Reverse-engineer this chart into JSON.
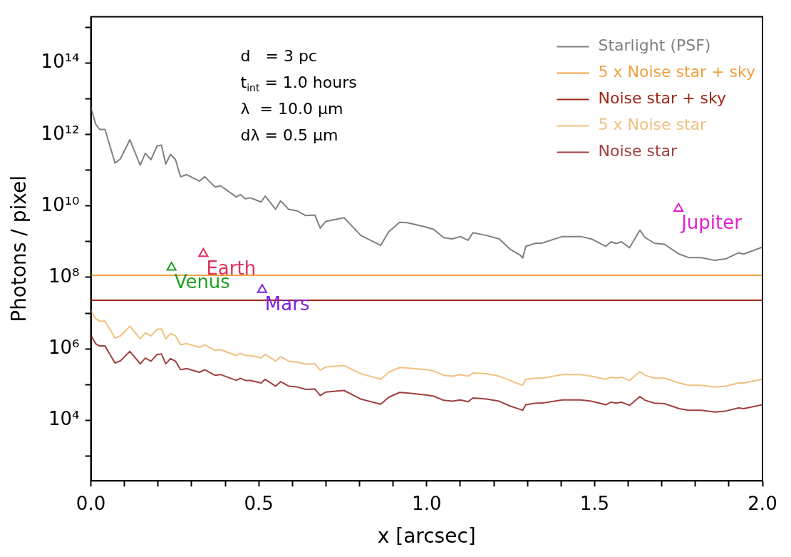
{
  "chart_data": {
    "type": "line",
    "xlabel": "x [arcsec]",
    "ylabel": "Photons / pixel",
    "log": "y",
    "grid": false,
    "legend": "top right",
    "line_style": "solid",
    "xlim": [
      0,
      2
    ],
    "xticks": [
      {
        "value": 0,
        "label": "0.0"
      },
      {
        "value": 0.1,
        "label": null
      },
      {
        "value": 0.2,
        "label": null
      },
      {
        "value": 0.3,
        "label": null
      },
      {
        "value": 0.4,
        "label": null
      },
      {
        "value": 0.5,
        "label": "0.5"
      },
      {
        "value": 0.6,
        "label": null
      },
      {
        "value": 0.7,
        "label": null
      },
      {
        "value": 0.8,
        "label": null
      },
      {
        "value": 0.9,
        "label": null
      },
      {
        "value": 1,
        "label": "1.0"
      },
      {
        "value": 1.1,
        "label": null
      },
      {
        "value": 1.2,
        "label": null
      },
      {
        "value": 1.3,
        "label": null
      },
      {
        "value": 1.4,
        "label": null
      },
      {
        "value": 1.5,
        "label": "1.5"
      },
      {
        "value": 1.6,
        "label": null
      },
      {
        "value": 1.7,
        "label": null
      },
      {
        "value": 1.8,
        "label": null
      },
      {
        "value": 1.9,
        "label": null
      },
      {
        "value": 2,
        "label": "2.0"
      }
    ],
    "ylim": [
      200,
      2000000000000000.0
    ],
    "yticks": [
      {
        "value": 1000,
        "label": null
      },
      {
        "value": 10000,
        "label": "10⁴"
      },
      {
        "value": 100000,
        "label": null
      },
      {
        "value": 1000000,
        "label": "10⁶"
      },
      {
        "value": 10000000,
        "label": null
      },
      {
        "value": 100000000,
        "label": "10⁸"
      },
      {
        "value": 1000000000,
        "label": null
      },
      {
        "value": 10000000000,
        "label": "10¹⁰"
      },
      {
        "value": 100000000000,
        "label": null
      },
      {
        "value": 1000000000000,
        "label": "10¹²"
      },
      {
        "value": 10000000000000,
        "label": null
      },
      {
        "value": 100000000000000,
        "label": "10¹⁴"
      },
      {
        "value": 1000000000000000,
        "label": null
      }
    ],
    "annotations": [
      "d   = 3 pc",
      "t$_{int}$ = 1.0 hours",
      "λ  = 10.0 μm",
      "dλ = 0.5 μm"
    ],
    "x": [
      0,
      0.014,
      0.026,
      0.042,
      0.072,
      0.088,
      0.116,
      0.147,
      0.162,
      0.179,
      0.197,
      0.21,
      0.223,
      0.237,
      0.252,
      0.267,
      0.285,
      0.323,
      0.339,
      0.37,
      0.386,
      0.433,
      0.445,
      0.46,
      0.475,
      0.507,
      0.519,
      0.55,
      0.565,
      0.589,
      0.613,
      0.64,
      0.667,
      0.683,
      0.699,
      0.754,
      0.804,
      0.863,
      0.887,
      0.919,
      0.942,
      0.997,
      1.021,
      1.051,
      1.076,
      1.1,
      1.123,
      1.138,
      1.178,
      1.216,
      1.248,
      1.279,
      1.286,
      1.295,
      1.325,
      1.342,
      1.404,
      1.459,
      1.49,
      1.533,
      1.549,
      1.564,
      1.58,
      1.604,
      1.635,
      1.651,
      1.678,
      1.708,
      1.752,
      1.78,
      1.818,
      1.858,
      1.89,
      1.929,
      1.944,
      2
    ],
    "series": [
      {
        "name": "Starlight (PSF)",
        "color": "#808080",
        "values": [
          5800000000000.0,
          2000000000000.0,
          1400000000000.0,
          1400000000000.0,
          160000000000.0,
          210000000000.0,
          720000000000.0,
          140000000000.0,
          300000000000.0,
          200000000000.0,
          480000000000.0,
          510000000000.0,
          150000000000.0,
          280000000000.0,
          200000000000.0,
          66000000000.0,
          76000000000.0,
          50000000000.0,
          66000000000.0,
          34000000000.0,
          37000000000.0,
          18000000000.0,
          21000000000.0,
          16000000000.0,
          17000000000.0,
          13000000000.0,
          19000000000.0,
          8100000000.0,
          14000000000.0,
          8100000000.0,
          7400000000.0,
          5400000000.0,
          5600000000.0,
          2400000000.0,
          3700000000.0,
          4700000000.0,
          1500000000.0,
          790000000.0,
          1900000000.0,
          3500000000.0,
          3400000000.0,
          2600000000.0,
          2200000000.0,
          1300000000.0,
          1200000000.0,
          1400000000.0,
          1100000000.0,
          1800000000.0,
          1500000000.0,
          1200000000.0,
          620000000.0,
          420000000.0,
          350000000.0,
          740000000.0,
          910000000.0,
          910000000.0,
          1400000000.0,
          1400000000.0,
          1200000000.0,
          740000000.0,
          1000000000.0,
          890000000.0,
          1000000000.0,
          680000000.0,
          2100000000.0,
          1300000000.0,
          910000000.0,
          850000000.0,
          450000000.0,
          360000000.0,
          360000000.0,
          300000000.0,
          330000000.0,
          490000000.0,
          450000000.0,
          710000000.0
        ]
      },
      {
        "name": "5 x Noise star + sky",
        "color": "#f0a040",
        "x": [
          0,
          2
        ],
        "values": [
          115000000.0,
          115000000.0
        ]
      },
      {
        "name": "Noise star + sky",
        "color": "#a02818",
        "x": [
          0,
          2
        ],
        "values": [
          23000000.0,
          23000000.0
        ]
      },
      {
        "name": "5 x Noise star",
        "color": "#f0c080",
        "values": [
          12000000.0,
          7000000.0,
          6000000.0,
          6000000.0,
          2000000.0,
          2300000.0,
          4300000.0,
          1900000.0,
          2800000.0,
          2300000.0,
          3500000.0,
          3600000.0,
          1900000.0,
          2700000.0,
          2300000.0,
          1300000.0,
          1400000.0,
          1100000.0,
          1300000.0,
          900000.0,
          950000.0,
          650000.0,
          750000.0,
          650000.0,
          650000.0,
          550000.0,
          700000.0,
          450000.0,
          600000.0,
          450000.0,
          430000.0,
          370000.0,
          380000.0,
          250000.0,
          310000.0,
          340000.0,
          200000.0,
          140000.0,
          220000.0,
          300000.0,
          290000.0,
          260000.0,
          240000.0,
          180000.0,
          170000.0,
          190000.0,
          170000.0,
          210000.0,
          200000.0,
          170000.0,
          130000.0,
          100000.0,
          95000.0,
          140000.0,
          150000.0,
          150000.0,
          190000.0,
          190000.0,
          170000.0,
          140000.0,
          160000.0,
          150000.0,
          160000.0,
          130000.0,
          230000.0,
          180000.0,
          150000.0,
          150000.0,
          110000.0,
          95000.0,
          95000.0,
          85000.0,
          90000.0,
          110000.0,
          110000.0,
          140000.0
        ]
      },
      {
        "name": "Noise star",
        "color": "#a04040",
        "values": [
          2400000.0,
          1400000.0,
          1200000.0,
          1200000.0,
          400000.0,
          460000.0,
          850000.0,
          380000.0,
          550000.0,
          450000.0,
          690000.0,
          720000.0,
          380000.0,
          530000.0,
          450000.0,
          260000.0,
          280000.0,
          220000.0,
          260000.0,
          180000.0,
          190000.0,
          130000.0,
          150000.0,
          130000.0,
          130000.0,
          110000.0,
          140000.0,
          90000.0,
          120000.0,
          90000.0,
          86000.0,
          73000.0,
          75000.0,
          49000.0,
          61000.0,
          68000.0,
          39000.0,
          28000.0,
          44000.0,
          60000.0,
          58000.0,
          51000.0,
          47000.0,
          36000.0,
          34000.0,
          37000.0,
          33000.0,
          42000.0,
          39000.0,
          34000.0,
          25000.0,
          20000.0,
          19000.0,
          27000.0,
          30000.0,
          30000.0,
          37000.0,
          37000.0,
          34000.0,
          27000.0,
          32000.0,
          30000.0,
          32000.0,
          26000.0,
          46000.0,
          36000.0,
          30000.0,
          29000.0,
          21000.0,
          19000.0,
          19000.0,
          17000.0,
          18000.0,
          22000.0,
          21000.0,
          27000.0
        ]
      },
      {
        "name": "Venus",
        "type": "scatter",
        "marker": "triangle",
        "color": "#22a022",
        "x": [
          0.24
        ],
        "values": [
          190000000.0
        ]
      },
      {
        "name": "Earth",
        "type": "scatter",
        "marker": "triangle",
        "color": "#e0305a",
        "x": [
          0.335
        ],
        "values": [
          460000000.0
        ]
      },
      {
        "name": "Mars",
        "type": "scatter",
        "marker": "triangle",
        "color": "#8020e0",
        "x": [
          0.51
        ],
        "values": [
          45000000.0
        ]
      },
      {
        "name": "Jupiter",
        "type": "scatter",
        "marker": "triangle",
        "color": "#e020d0",
        "x": [
          1.75
        ],
        "values": [
          8500000000.0
        ]
      }
    ]
  }
}
